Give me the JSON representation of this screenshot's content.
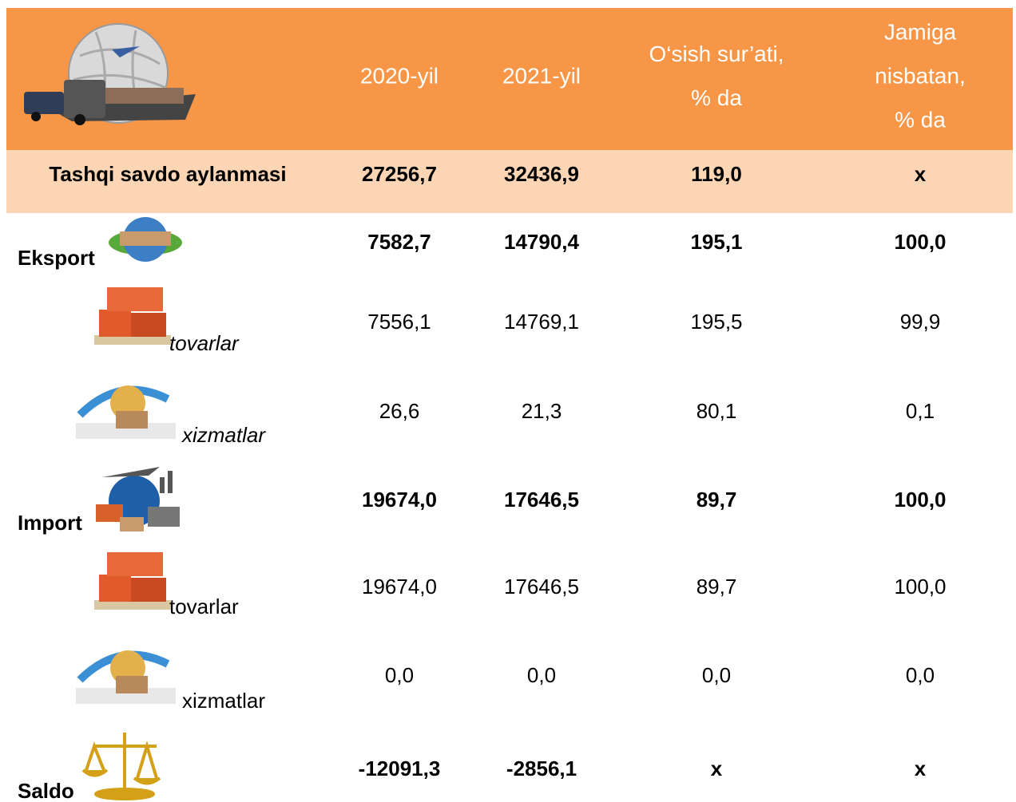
{
  "table": {
    "header": [
      [
        "2020-yil"
      ],
      [
        "2021-yil"
      ],
      [
        "O‘sish sur’ati,",
        "% da"
      ],
      [
        "Jamiga",
        "nisbatan,",
        "% da"
      ]
    ],
    "rows": [
      {
        "label": "Tashqi savdo aylanmasi",
        "cells": [
          "27256,7",
          "32436,9",
          "119,0",
          "x"
        ]
      },
      {
        "label": "Eksport",
        "cells": [
          "7582,7",
          "14790,4",
          "195,1",
          "100,0"
        ]
      },
      {
        "label": "tovarlar",
        "cells": [
          "7556,1",
          "14769,1",
          "195,5",
          "99,9"
        ]
      },
      {
        "label": "xizmatlar",
        "cells": [
          "26,6",
          "21,3",
          "80,1",
          "0,1"
        ]
      },
      {
        "label": "Import",
        "cells": [
          "19674,0",
          "17646,5",
          "89,7",
          "100,0"
        ]
      },
      {
        "label": "tovarlar",
        "cells": [
          "19674,0",
          "17646,5",
          "89,7",
          "100,0"
        ]
      },
      {
        "label": "xizmatlar",
        "cells": [
          "0,0",
          "0,0",
          "0,0",
          "0,0"
        ]
      },
      {
        "label": "Saldo",
        "cells": [
          "-12091,3",
          "-2856,1",
          "x",
          "x"
        ]
      }
    ]
  }
}
